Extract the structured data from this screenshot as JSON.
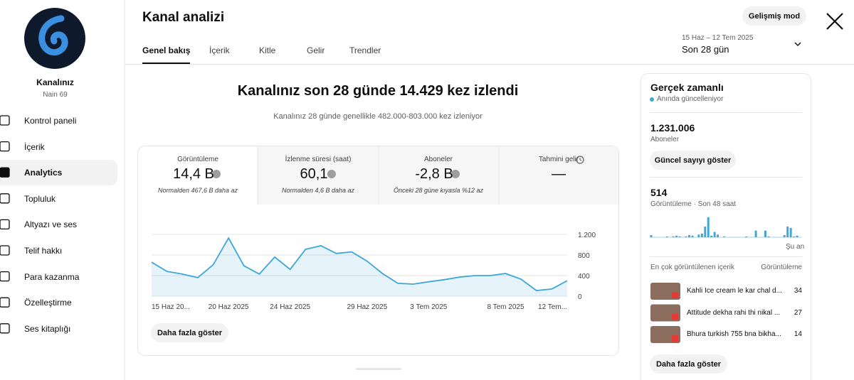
{
  "sidebar": {
    "channel_title": "Kanalınız",
    "channel_name": "Nain 69",
    "nav": [
      "Kontrol paneli",
      "İçerik",
      "Analytics",
      "Topluluk",
      "Altyazı ve ses",
      "Telif hakkı",
      "Para kazanma",
      "Özelleştirme",
      "Ses kitaplığı"
    ],
    "active_nav": 2
  },
  "header": {
    "title": "Kanal analizi",
    "advanced_button": "Gelişmiş mod",
    "tabs": [
      "Genel bakış",
      "İçerik",
      "Kitle",
      "Gelir",
      "Trendler"
    ],
    "active_tab": 0,
    "date_range": "15 Haz – 12 Tem 2025",
    "period": "Son 28 gün"
  },
  "summary": {
    "headline": "Kanalınız son 28 günde 14.429 kez izlendi",
    "subline": "Kanalınız 28 günde genellikle 482.000-803.000 kez izleniyor"
  },
  "metrics": [
    {
      "label": "Görüntüleme",
      "value": "14,4 B",
      "note": "Normalden 467,6 B daha az"
    },
    {
      "label": "İzlenme süresi (saat)",
      "value": "60,1",
      "note": "Normalden 4,6 B daha az"
    },
    {
      "label": "Aboneler",
      "value": "-2,8 B",
      "note": "Önceki 28 güne kıyasla %12 az"
    },
    {
      "label": "Tahmini gelir",
      "value": "—"
    }
  ],
  "chart_data": {
    "type": "area",
    "categories": [
      "15 Haz 20...",
      null,
      null,
      null,
      null,
      "20 Haz 2025",
      null,
      null,
      null,
      "24 Haz 2025",
      null,
      null,
      null,
      null,
      "29 Haz 2025",
      null,
      null,
      null,
      "3 Tem 2025",
      null,
      null,
      null,
      null,
      "8 Tem 2025",
      null,
      null,
      null,
      "12 Tem..."
    ],
    "values": [
      660,
      480,
      430,
      360,
      610,
      1130,
      590,
      430,
      760,
      520,
      910,
      980,
      830,
      860,
      680,
      440,
      250,
      235,
      280,
      320,
      370,
      400,
      400,
      440,
      330,
      110,
      140,
      300
    ],
    "color": "#3ea6d8",
    "ylim": [
      0,
      1200
    ],
    "yticks": [
      0,
      400,
      800,
      {
        "value": 1200,
        "label": "1.200"
      }
    ],
    "grid": true
  },
  "more_button": "Daha fazla göster",
  "realtime": {
    "title": "Gerçek zamanlı",
    "status": "Anında güncelleniyor",
    "subscribers": "1.231.006",
    "subscribers_label": "Aboneler",
    "show_count_button": "Güncel sayıyı göster",
    "views": "514",
    "views_label": "Görüntüleme · Son 48 saat",
    "chart": {
      "type": "bar",
      "values": [
        8,
        0,
        0,
        0,
        0,
        3,
        0,
        3,
        6,
        3,
        0,
        3,
        8,
        6,
        0,
        10,
        14,
        40,
        75,
        6,
        20,
        10,
        0,
        3,
        0,
        0,
        0,
        0,
        0,
        0,
        3,
        0,
        0,
        25,
        0,
        0,
        25,
        3,
        0,
        0,
        0,
        0,
        8,
        40,
        35,
        3,
        6,
        0
      ],
      "color": "#3ea6d8",
      "ylim": [
        0,
        80
      ]
    },
    "now_label": "Şu an",
    "top_heading": "En çok görüntülenen içerik",
    "top_column": "Görüntüleme",
    "top_content": [
      {
        "title": "Kahli Ice cream le kar chal d...",
        "views": "34"
      },
      {
        "title": "Attitude dekha rahi thi nikal ...",
        "views": "27"
      },
      {
        "title": "Bhura turkish 755 bna bikha...",
        "views": "14"
      }
    ],
    "more_button": "Daha fazla göster"
  }
}
